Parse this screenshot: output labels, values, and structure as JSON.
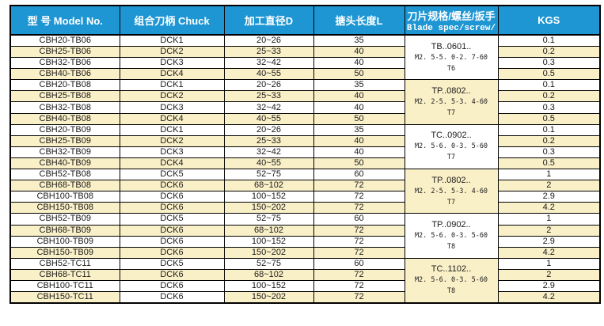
{
  "colors": {
    "header_bg": "#1E96D3",
    "header_text": "#FFFFFF",
    "stripe": "#FAF0C8",
    "border": "#000000",
    "page_bg": "#FFFFFF"
  },
  "table": {
    "columns": [
      {
        "key": "model",
        "label": "型 号 Model No."
      },
      {
        "key": "chuck",
        "label": "组合刀柄 Chuck"
      },
      {
        "key": "diameter",
        "label": "加工直径D"
      },
      {
        "key": "length",
        "label": "搪头长度L"
      },
      {
        "key": "spec",
        "label": "刀片规格/螺丝/扳手",
        "sublabel": "Blade spec/screw/"
      },
      {
        "key": "kgs",
        "label": "KGS"
      }
    ],
    "groups": [
      {
        "spec_line1": "TB..0601..",
        "spec_line2": "M2. 5-5. 0-2. 7-60",
        "spec_line3": "T6",
        "spec_shaded": false,
        "rows": [
          {
            "model": "CBH20-TB06",
            "chuck": "DCK1",
            "diameter": "20~26",
            "length": "35",
            "kgs": "0.1"
          },
          {
            "model": "CBH25-TB06",
            "chuck": "DCK2",
            "diameter": "25~33",
            "length": "40",
            "kgs": "0.2"
          },
          {
            "model": "CBH32-TB06",
            "chuck": "DCK3",
            "diameter": "32~42",
            "length": "40",
            "kgs": "0.3"
          },
          {
            "model": "CBH40-TB06",
            "chuck": "DCK4",
            "diameter": "40~55",
            "length": "50",
            "kgs": "0.5"
          }
        ]
      },
      {
        "spec_line1": "TP..0802..",
        "spec_line2": "M2. 2-5. 5-3. 4-60",
        "spec_line3": "T7",
        "spec_shaded": true,
        "rows": [
          {
            "model": "CBH20-TB08",
            "chuck": "DCK1",
            "diameter": "20~26",
            "length": "35",
            "kgs": "0.1"
          },
          {
            "model": "CBH25-TB08",
            "chuck": "DCK2",
            "diameter": "25~33",
            "length": "40",
            "kgs": "0.2"
          },
          {
            "model": "CBH32-TB08",
            "chuck": "DCK3",
            "diameter": "32~42",
            "length": "40",
            "kgs": "0.3"
          },
          {
            "model": "CBH40-TB08",
            "chuck": "DCK4",
            "diameter": "40~55",
            "length": "50",
            "kgs": "0.5"
          }
        ]
      },
      {
        "spec_line1": "TC..0902..",
        "spec_line2": "M2. 5-6. 0-3. 5-60",
        "spec_line3": "T7",
        "spec_shaded": false,
        "rows": [
          {
            "model": "CBH20-TB09",
            "chuck": "DCK1",
            "diameter": "20~26",
            "length": "35",
            "kgs": "0.1"
          },
          {
            "model": "CBH25-TB09",
            "chuck": "DCK2",
            "diameter": "25~33",
            "length": "40",
            "kgs": "0.2"
          },
          {
            "model": "CBH32-TB09",
            "chuck": "DCK3",
            "diameter": "32~42",
            "length": "40",
            "kgs": "0.3"
          },
          {
            "model": "CBH40-TB09",
            "chuck": "DCK4",
            "diameter": "40~55",
            "length": "50",
            "kgs": "0.5"
          }
        ]
      },
      {
        "spec_line1": "TP..0802..",
        "spec_line2": "M2. 2-5. 5-3. 4-60",
        "spec_line3": "T7",
        "spec_shaded": true,
        "rows": [
          {
            "model": "CBH52-TB08",
            "chuck": "DCK5",
            "diameter": "52~75",
            "length": "60",
            "kgs": "1"
          },
          {
            "model": "CBH68-TB08",
            "chuck": "DCK6",
            "diameter": "68~102",
            "length": "72",
            "kgs": "2"
          },
          {
            "model": "CBH100-TB08",
            "chuck": "DCK6",
            "diameter": "100~152",
            "length": "72",
            "kgs": "2.9"
          },
          {
            "model": "CBH150-TB08",
            "chuck": "DCK6",
            "diameter": "150~202",
            "length": "72",
            "kgs": "4.2"
          }
        ]
      },
      {
        "spec_line1": "TP..0902..",
        "spec_line2": "M2. 5-6. 0-3. 5-60",
        "spec_line3": "T8",
        "spec_shaded": false,
        "rows": [
          {
            "model": "CBH52-TB09",
            "chuck": "DCK5",
            "diameter": "52~75",
            "length": "60",
            "kgs": "1"
          },
          {
            "model": "CBH68-TB09",
            "chuck": "DCK6",
            "diameter": "68~102",
            "length": "72",
            "kgs": "2"
          },
          {
            "model": "CBH100-TB09",
            "chuck": "DCK6",
            "diameter": "100~152",
            "length": "72",
            "kgs": "2.9"
          },
          {
            "model": "CBH150-TB09",
            "chuck": "DCK6",
            "diameter": "150~202",
            "length": "72",
            "kgs": "4.2"
          }
        ]
      },
      {
        "spec_line1": "TC..1102..",
        "spec_line2": "M2. 5-6. 0-3. 5-60",
        "spec_line3": "T8",
        "spec_shaded": true,
        "rows": [
          {
            "model": "CBH52-TC11",
            "chuck": "DCK5",
            "diameter": "52~75",
            "length": "60",
            "kgs": "1"
          },
          {
            "model": "CBH68-TC11",
            "chuck": "DCK6",
            "diameter": "68~102",
            "length": "72",
            "kgs": "2"
          },
          {
            "model": "CBH100-TC11",
            "chuck": "DCK6",
            "diameter": "100~152",
            "length": "72",
            "kgs": "2.9"
          },
          {
            "model": "CBH150-TC11",
            "chuck": "DCK6",
            "diameter": "150~202",
            "length": "72",
            "kgs": "4.2",
            "chuck_unshaded": true
          }
        ]
      }
    ]
  }
}
